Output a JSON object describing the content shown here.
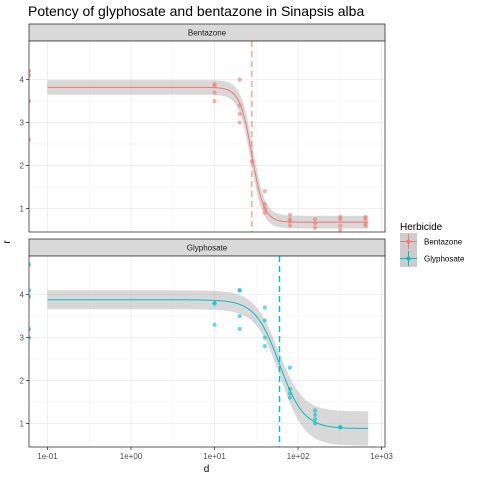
{
  "chart_data": {
    "type": "line",
    "title": "Potency of glyphosate and bentazone in Sinapsis alba",
    "xlabel": "d",
    "ylabel": "r",
    "x_scale": "log10",
    "xlim": [
      0.06,
      1100
    ],
    "x_ticks": [
      0.1,
      1,
      10,
      100,
      1000
    ],
    "x_tick_labels": [
      "1e-01",
      "1e+00",
      "1e+01",
      "1e+02",
      "1e+03"
    ],
    "y_ticks": [
      1,
      2,
      3,
      4
    ],
    "legend": {
      "title": "Herbicide",
      "position": "right",
      "entries": [
        "Bentazone",
        "Glyphosate"
      ]
    },
    "panels": [
      {
        "strip": "Bentazone",
        "color": "#F8766D",
        "ylim": [
          0.45,
          4.9
        ],
        "ed50": 28,
        "curve": {
          "upper": 3.82,
          "lower": 0.68,
          "ed50": 28,
          "slope": 6.0
        },
        "band_half_width": {
          "plateau_high": 0.17,
          "transition": 0.28,
          "plateau_low": 0.15
        },
        "points": [
          {
            "x": 0.06,
            "y": 4.2
          },
          {
            "x": 0.06,
            "y": 4.1
          },
          {
            "x": 0.06,
            "y": 3.5
          },
          {
            "x": 0.06,
            "y": 2.6
          },
          {
            "x": 10,
            "y": 3.9
          },
          {
            "x": 10,
            "y": 3.85
          },
          {
            "x": 10,
            "y": 3.7
          },
          {
            "x": 10,
            "y": 3.5
          },
          {
            "x": 20,
            "y": 4.0
          },
          {
            "x": 20,
            "y": 3.4
          },
          {
            "x": 20,
            "y": 3.2
          },
          {
            "x": 20,
            "y": 3.0
          },
          {
            "x": 28,
            "y": 2.1
          },
          {
            "x": 40,
            "y": 1.4
          },
          {
            "x": 40,
            "y": 1.1
          },
          {
            "x": 40,
            "y": 1.0
          },
          {
            "x": 40,
            "y": 0.9
          },
          {
            "x": 80,
            "y": 0.85
          },
          {
            "x": 80,
            "y": 0.75
          },
          {
            "x": 80,
            "y": 0.7
          },
          {
            "x": 80,
            "y": 0.6
          },
          {
            "x": 160,
            "y": 0.75
          },
          {
            "x": 160,
            "y": 0.65
          },
          {
            "x": 160,
            "y": 0.55
          },
          {
            "x": 320,
            "y": 0.8
          },
          {
            "x": 320,
            "y": 0.75
          },
          {
            "x": 320,
            "y": 0.6
          },
          {
            "x": 320,
            "y": 0.5
          },
          {
            "x": 640,
            "y": 0.8
          },
          {
            "x": 640,
            "y": 0.75
          },
          {
            "x": 640,
            "y": 0.65
          },
          {
            "x": 640,
            "y": 0.6
          }
        ]
      },
      {
        "strip": "Glyphosate",
        "color": "#00BFC4",
        "ylim": [
          0.45,
          4.9
        ],
        "ed50": 60,
        "curve": {
          "upper": 3.88,
          "lower": 0.88,
          "ed50": 60,
          "slope": 3.0
        },
        "band_half_width": {
          "plateau_high": 0.22,
          "transition": 0.25,
          "plateau_low": 0.4
        },
        "points": [
          {
            "x": 0.06,
            "y": 4.7
          },
          {
            "x": 0.06,
            "y": 4.1
          },
          {
            "x": 0.06,
            "y": 3.95
          },
          {
            "x": 0.06,
            "y": 3.2
          },
          {
            "x": 0.06,
            "y": 3.0
          },
          {
            "x": 10,
            "y": 3.8
          },
          {
            "x": 10,
            "y": 3.8
          },
          {
            "x": 10,
            "y": 3.3
          },
          {
            "x": 20,
            "y": 4.1
          },
          {
            "x": 20,
            "y": 4.1
          },
          {
            "x": 20,
            "y": 3.5
          },
          {
            "x": 20,
            "y": 3.2
          },
          {
            "x": 40,
            "y": 3.7
          },
          {
            "x": 40,
            "y": 3.4
          },
          {
            "x": 40,
            "y": 3.0
          },
          {
            "x": 40,
            "y": 2.8
          },
          {
            "x": 80,
            "y": 2.3
          },
          {
            "x": 80,
            "y": 1.8
          },
          {
            "x": 80,
            "y": 1.7
          },
          {
            "x": 80,
            "y": 1.6
          },
          {
            "x": 160,
            "y": 1.3
          },
          {
            "x": 160,
            "y": 1.2
          },
          {
            "x": 160,
            "y": 1.1
          },
          {
            "x": 160,
            "y": 1.0
          },
          {
            "x": 320,
            "y": 0.92
          },
          {
            "x": 320,
            "y": 0.9
          }
        ]
      }
    ]
  }
}
